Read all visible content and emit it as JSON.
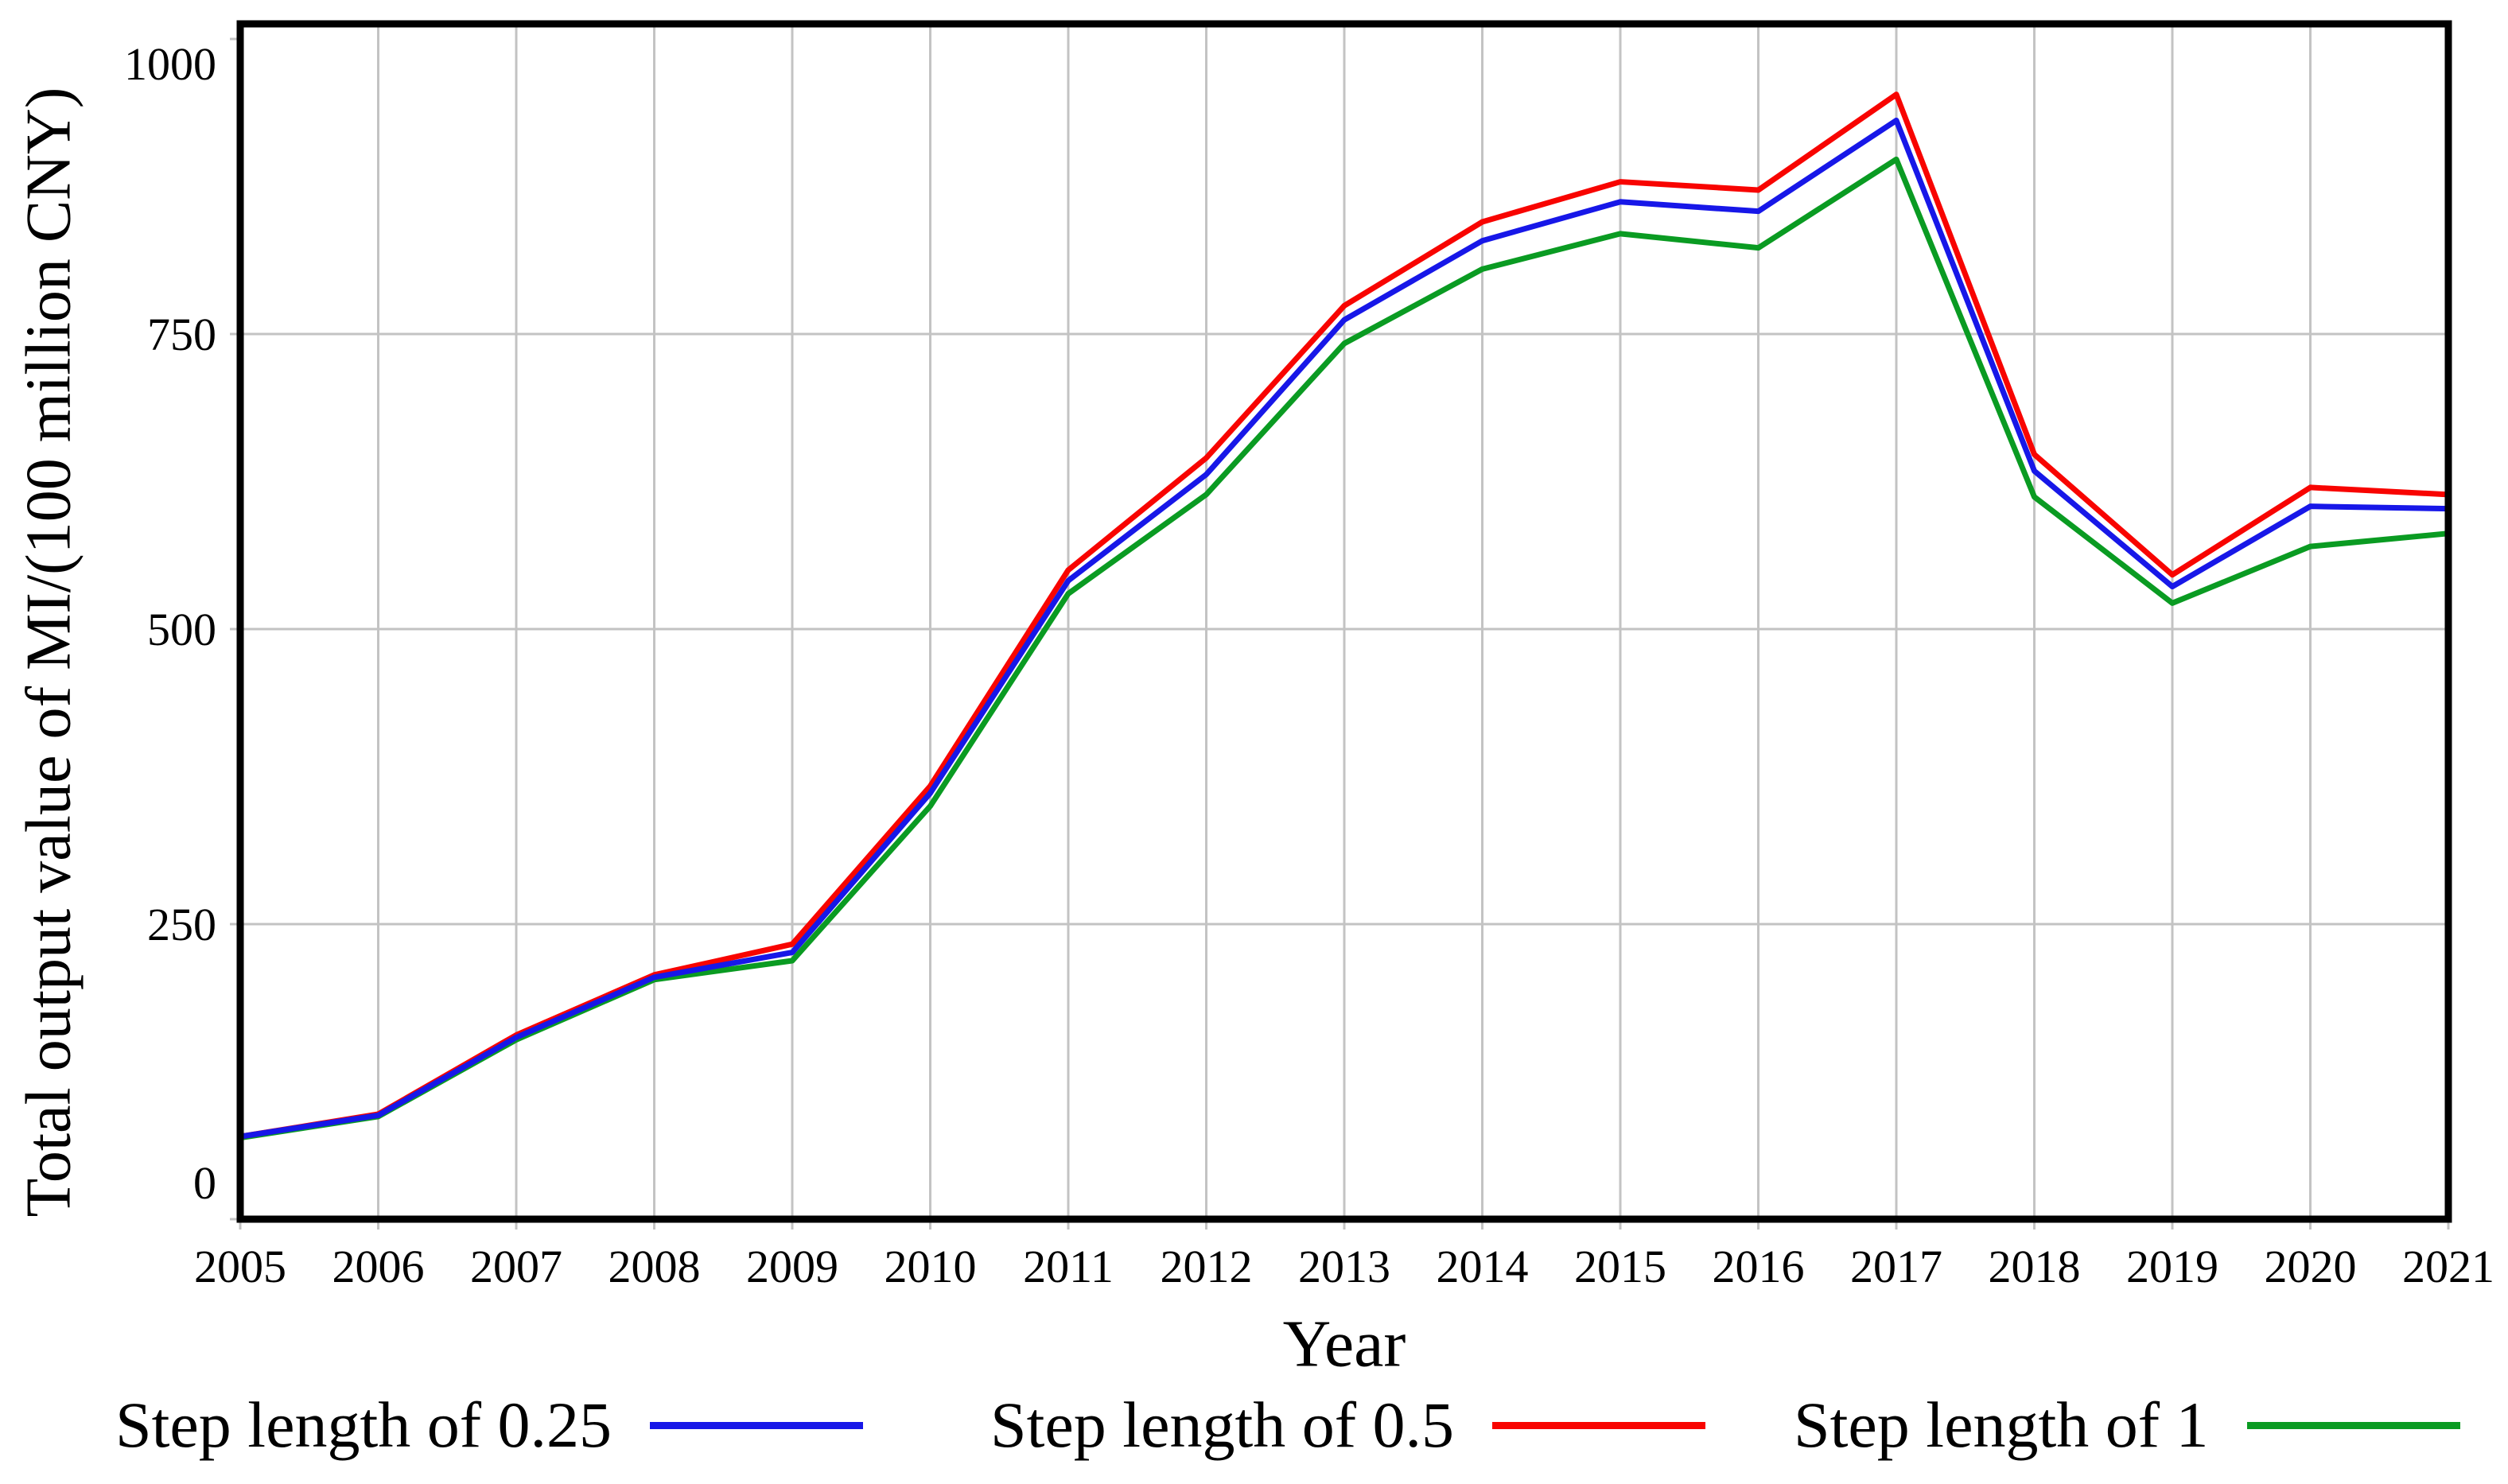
{
  "chart_data": {
    "type": "line",
    "title": "",
    "xlabel": "Year",
    "ylabel": "Total output value of MI/(100 million CNY)",
    "x": [
      2005,
      2006,
      2007,
      2008,
      2009,
      2010,
      2011,
      2012,
      2013,
      2014,
      2015,
      2016,
      2017,
      2018,
      2019,
      2020,
      2021
    ],
    "xlim": [
      2005,
      2021
    ],
    "ylim": [
      0,
      1000
    ],
    "yticks": [
      0,
      250,
      500,
      750,
      1000
    ],
    "grid": true,
    "legend_position": "bottom",
    "series": [
      {
        "name": "Step length of 0.25",
        "color": "#1717e8",
        "values": [
          70,
          88,
          154,
          205,
          226,
          361,
          541,
          631,
          762,
          829,
          862,
          854,
          931,
          634,
          536,
          604,
          602
        ]
      },
      {
        "name": "Step length of 0.5",
        "color": "#f80400",
        "values": [
          70,
          89,
          156,
          207,
          233,
          367,
          550,
          645,
          774,
          845,
          879,
          872,
          953,
          648,
          546,
          620,
          614
        ]
      },
      {
        "name": "Step length of 1",
        "color": "#0a9b22",
        "values": [
          69,
          87,
          152,
          203,
          219,
          350,
          530,
          614,
          742,
          805,
          835,
          823,
          898,
          612,
          522,
          570,
          581
        ]
      }
    ],
    "grid_color": "#c3c3c3",
    "frame_color": "#000000"
  }
}
